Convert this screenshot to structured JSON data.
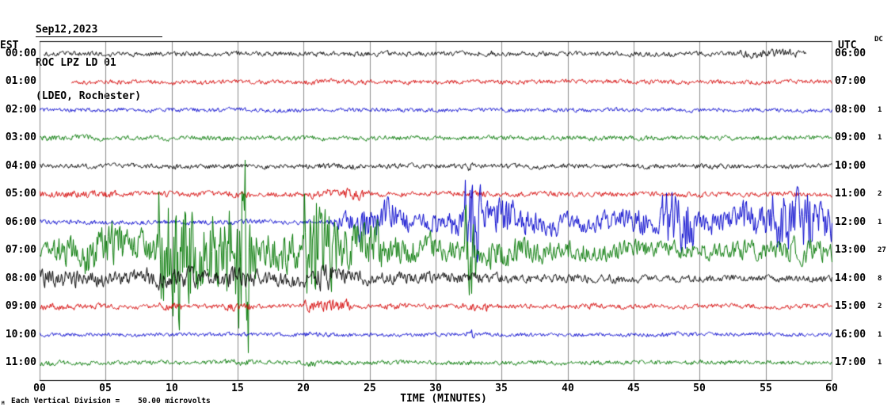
{
  "header": {
    "date": "Sep12,2023",
    "station": "ROC LPZ LD 01",
    "location": "(LDEO, Rochester)"
  },
  "axes": {
    "left_label": "EST",
    "right_label": "UTC",
    "dc_label": "DC",
    "x_title": "TIME (MINUTES)",
    "x_ticks": [
      "00",
      "05",
      "10",
      "15",
      "20",
      "25",
      "30",
      "35",
      "40",
      "45",
      "50",
      "55",
      "60"
    ]
  },
  "footer": {
    "scale_marker": "M",
    "scale_note": "Each Vertical Division =    50.00 microvolts"
  },
  "colors": {
    "black": "#000000",
    "red": "#d40000",
    "blue": "#0000cc",
    "green": "#007700",
    "grid": "#8a8a8a"
  },
  "chart_data": {
    "type": "line",
    "title": "ROC LPZ LD 01 helicorder, Sep12,2023 (LDEO, Rochester)",
    "xlabel": "TIME (MINUTES)",
    "x_range": [
      0,
      60
    ],
    "y_scale": "50.00 microvolts per vertical division",
    "grid": "vertical lines every 5 minutes",
    "rows": [
      {
        "est": "00:00",
        "utc": "06:00",
        "dc": "",
        "color": "black",
        "start": 0.3,
        "end": 58,
        "env": [
          [
            0.3,
            58,
            3.2
          ],
          [
            33,
            34.5,
            5
          ],
          [
            53,
            57.5,
            5.5
          ]
        ]
      },
      {
        "est": "01:00",
        "utc": "07:00",
        "dc": "",
        "color": "red",
        "start": 2.4,
        "end": 60,
        "env": [
          [
            2.4,
            60,
            3
          ],
          [
            20,
            25,
            3.5
          ]
        ]
      },
      {
        "est": "02:00",
        "utc": "08:00",
        "dc": "1",
        "color": "blue",
        "start": 0,
        "end": 60,
        "env": [
          [
            0,
            60,
            2.8
          ]
        ]
      },
      {
        "est": "03:00",
        "utc": "09:00",
        "dc": "1",
        "color": "green",
        "start": 0,
        "end": 60,
        "env": [
          [
            0,
            60,
            3.2
          ],
          [
            0,
            5,
            4
          ]
        ]
      },
      {
        "est": "04:00",
        "utc": "10:00",
        "dc": "",
        "color": "black",
        "start": 0,
        "end": 60,
        "env": [
          [
            0,
            60,
            3.2
          ],
          [
            21,
            24,
            4
          ],
          [
            32.3,
            32.8,
            8
          ]
        ]
      },
      {
        "est": "05:00",
        "utc": "11:00",
        "dc": "2",
        "color": "red",
        "start": 0,
        "end": 60,
        "env": [
          [
            0,
            60,
            3.5
          ],
          [
            0,
            6,
            5
          ],
          [
            9,
            11,
            4.5
          ],
          [
            14,
            16,
            4.5
          ],
          [
            20.5,
            25,
            7.5
          ],
          [
            32,
            34,
            5
          ]
        ]
      },
      {
        "est": "06:00",
        "utc": "12:00",
        "dc": "1",
        "color": "blue",
        "start": 0,
        "end": 60,
        "env": [
          [
            0,
            22,
            3.2
          ],
          [
            22,
            24,
            12
          ],
          [
            24,
            27,
            26
          ],
          [
            27,
            31,
            14
          ],
          [
            31,
            32.2,
            20
          ],
          [
            32.2,
            33.4,
            55
          ],
          [
            33.4,
            36,
            28
          ],
          [
            36,
            40,
            16
          ],
          [
            40,
            44,
            13
          ],
          [
            44,
            47,
            18
          ],
          [
            47,
            49.5,
            38
          ],
          [
            49.5,
            53,
            16
          ],
          [
            53,
            55.5,
            22
          ],
          [
            55.5,
            58.5,
            42
          ],
          [
            58.5,
            60,
            28
          ]
        ]
      },
      {
        "est": "07:00",
        "utc": "13:00",
        "dc": "27",
        "color": "green",
        "start": 0,
        "end": 60,
        "env": [
          [
            0,
            60,
            10
          ],
          [
            1,
            3,
            20
          ],
          [
            3,
            6,
            30
          ],
          [
            6,
            9,
            24
          ],
          [
            9,
            9.8,
            80
          ],
          [
            9.8,
            10.6,
            110
          ],
          [
            10.6,
            11.5,
            70
          ],
          [
            11.5,
            13,
            52
          ],
          [
            13,
            14.5,
            62
          ],
          [
            14.8,
            15.3,
            90
          ],
          [
            15.3,
            15.8,
            150
          ],
          [
            15.8,
            16.5,
            48
          ],
          [
            16.5,
            20,
            26
          ],
          [
            20,
            20.8,
            70
          ],
          [
            20.8,
            21.6,
            95
          ],
          [
            21.6,
            22.5,
            58
          ],
          [
            22.5,
            26,
            32
          ],
          [
            26,
            30,
            18
          ],
          [
            30,
            32.2,
            16
          ],
          [
            32.2,
            33,
            60
          ],
          [
            33,
            36,
            20
          ],
          [
            36,
            40,
            15
          ],
          [
            40,
            46,
            13
          ],
          [
            46,
            52,
            11
          ],
          [
            52,
            56,
            13
          ],
          [
            56,
            60,
            16
          ]
        ]
      },
      {
        "est": "08:00",
        "utc": "14:00",
        "dc": "8",
        "color": "black",
        "start": 0,
        "end": 60,
        "env": [
          [
            0,
            25,
            10
          ],
          [
            0,
            3,
            13
          ],
          [
            8,
            12,
            14
          ],
          [
            14,
            17,
            13
          ],
          [
            21,
            22.2,
            18
          ],
          [
            25,
            30,
            8
          ],
          [
            30,
            35,
            7
          ],
          [
            35,
            45,
            5.5
          ],
          [
            45,
            60,
            4.5
          ]
        ]
      },
      {
        "est": "09:00",
        "utc": "15:00",
        "dc": "2",
        "color": "red",
        "start": 0,
        "end": 60,
        "env": [
          [
            0,
            60,
            3.2
          ],
          [
            0,
            5,
            4.5
          ],
          [
            9,
            11,
            5.5
          ],
          [
            14,
            16,
            5.5
          ],
          [
            20,
            23.5,
            8
          ],
          [
            26,
            28,
            4.5
          ],
          [
            32,
            34,
            6
          ],
          [
            40,
            42,
            4
          ]
        ]
      },
      {
        "est": "10:00",
        "utc": "16:00",
        "dc": "1",
        "color": "blue",
        "start": 0,
        "end": 60,
        "env": [
          [
            0,
            60,
            2.6
          ],
          [
            20,
            22,
            3.5
          ],
          [
            32.3,
            32.9,
            6
          ],
          [
            47,
            49,
            3.2
          ]
        ]
      },
      {
        "est": "11:00",
        "utc": "17:00",
        "dc": "1",
        "color": "green",
        "start": 0,
        "end": 60,
        "env": [
          [
            0,
            60,
            3
          ],
          [
            0,
            2,
            4
          ],
          [
            14,
            16,
            4.5
          ],
          [
            20,
            21,
            4.5
          ],
          [
            32,
            33,
            4.5
          ]
        ]
      }
    ]
  }
}
